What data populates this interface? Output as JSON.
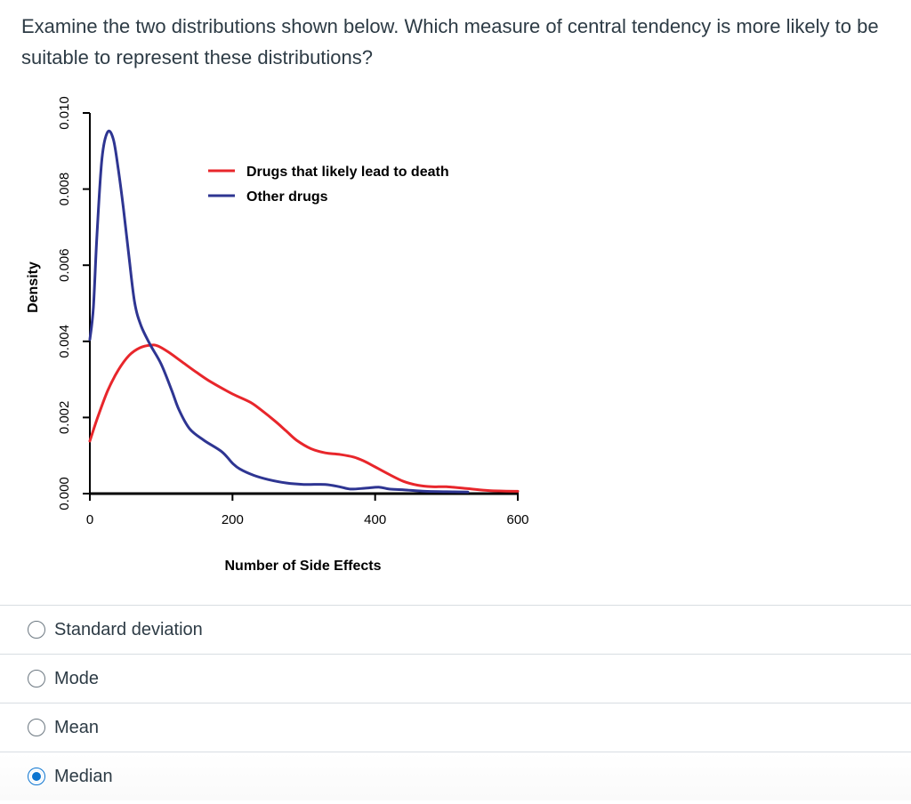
{
  "question": {
    "text": "Examine the two distributions shown below. Which measure of central tendency is more likely to be suitable to represent these distributions?"
  },
  "chart_data": {
    "type": "line",
    "xlabel": "Number of Side Effects",
    "ylabel": "Density",
    "xlim": [
      0,
      600
    ],
    "ylim": [
      0,
      0.01
    ],
    "xticks": [
      "0",
      "200",
      "400",
      "600"
    ],
    "xtick_values": [
      0,
      200,
      400,
      600
    ],
    "yticks": [
      "0.000",
      "0.002",
      "0.004",
      "0.006",
      "0.008",
      "0.010"
    ],
    "ytick_values": [
      0,
      0.002,
      0.004,
      0.006,
      0.008,
      0.01
    ],
    "legend_position": "top-right",
    "series": [
      {
        "name": "Drugs that likely lead to death",
        "color": "#e8262b",
        "x": [
          0,
          10,
          25,
          40,
          55,
          70,
          85,
          95,
          110,
          130,
          150,
          170,
          200,
          225,
          240,
          260,
          275,
          290,
          310,
          330,
          350,
          370,
          385,
          400,
          420,
          440,
          460,
          480,
          500,
          530,
          560,
          600
        ],
        "y": [
          0.00138,
          0.00195,
          0.0027,
          0.00325,
          0.00363,
          0.00383,
          0.0039,
          0.00388,
          0.00372,
          0.00345,
          0.00318,
          0.00293,
          0.00262,
          0.0024,
          0.0022,
          0.0019,
          0.00165,
          0.0014,
          0.00118,
          0.00107,
          0.00103,
          0.00096,
          0.00085,
          0.0007,
          0.0005,
          0.00032,
          0.00022,
          0.00018,
          0.00018,
          0.00013,
          8e-05,
          6e-05
        ]
      },
      {
        "name": "Other drugs",
        "color": "#2e3592",
        "x": [
          0,
          5,
          10,
          17,
          25,
          33,
          40,
          47,
          55,
          63,
          72,
          85,
          100,
          115,
          125,
          140,
          160,
          185,
          200,
          210,
          230,
          250,
          275,
          300,
          330,
          350,
          365,
          385,
          405,
          420,
          440,
          470,
          500,
          530
        ],
        "y": [
          0.00405,
          0.0049,
          0.0068,
          0.0088,
          0.0095,
          0.0093,
          0.0085,
          0.0075,
          0.0062,
          0.005,
          0.0044,
          0.0039,
          0.0034,
          0.0027,
          0.0022,
          0.0017,
          0.0014,
          0.0011,
          0.0008,
          0.00065,
          0.00048,
          0.00037,
          0.00028,
          0.00024,
          0.00024,
          0.00018,
          0.00012,
          0.00014,
          0.00017,
          0.00012,
          0.0001,
          6e-05,
          5e-05,
          4e-05
        ]
      }
    ]
  },
  "answers": [
    {
      "label": "Standard deviation",
      "selected": false
    },
    {
      "label": "Mode",
      "selected": false
    },
    {
      "label": "Mean",
      "selected": false
    },
    {
      "label": "Median",
      "selected": true
    }
  ]
}
